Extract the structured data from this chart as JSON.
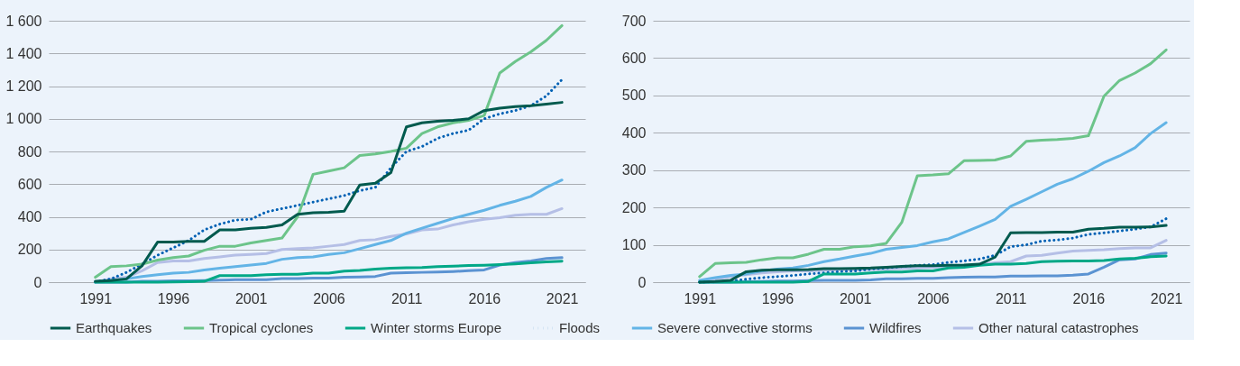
{
  "chart_data": [
    {
      "type": "line",
      "x": [
        1991,
        1992,
        1993,
        1994,
        1995,
        1996,
        1997,
        1998,
        1999,
        2000,
        2001,
        2002,
        2003,
        2004,
        2005,
        2006,
        2007,
        2008,
        2009,
        2010,
        2011,
        2012,
        2013,
        2014,
        2015,
        2016,
        2017,
        2018,
        2019,
        2020,
        2021
      ],
      "xlim": [
        1988,
        2022.5
      ],
      "xticks": [
        1991,
        1996,
        2001,
        2006,
        2011,
        2016,
        2021
      ],
      "ylim": [
        0,
        1600
      ],
      "yticks": [
        0,
        200,
        400,
        600,
        800,
        {
          "value": 1000,
          "label": "1 000"
        },
        {
          "value": 1200,
          "label": "1 200"
        },
        {
          "value": 1400,
          "label": "1 400"
        },
        {
          "value": 1600,
          "label": "1 600"
        }
      ],
      "grid": "y",
      "legend": "bottom",
      "marker": "none",
      "series": [
        {
          "name": "Earthquakes",
          "color": "#005a4e",
          "line_style": "solid",
          "values": [
            5,
            10,
            20,
            100,
            245,
            245,
            250,
            250,
            320,
            320,
            330,
            335,
            350,
            415,
            425,
            428,
            435,
            595,
            605,
            670,
            950,
            975,
            985,
            990,
            1000,
            1050,
            1065,
            1075,
            1080,
            1090,
            1100
          ]
        },
        {
          "name": "Tropical cyclones",
          "color": "#6cc48a",
          "line_style": "solid",
          "values": [
            30,
            95,
            100,
            110,
            135,
            150,
            160,
            195,
            220,
            220,
            240,
            255,
            270,
            400,
            660,
            680,
            700,
            775,
            785,
            800,
            820,
            910,
            950,
            975,
            990,
            1020,
            1280,
            1350,
            1410,
            1480,
            1570
          ]
        },
        {
          "name": "Winter storms Europe",
          "color": "#00a887",
          "line_style": "solid",
          "values": [
            0,
            0,
            0,
            0,
            0,
            2,
            3,
            5,
            40,
            40,
            40,
            45,
            48,
            48,
            55,
            55,
            68,
            72,
            80,
            85,
            88,
            90,
            95,
            98,
            102,
            104,
            107,
            112,
            118,
            124,
            128
          ]
        },
        {
          "name": "Floods",
          "color": "#0061b4",
          "line_style": "dotted",
          "values": [
            2,
            20,
            60,
            110,
            165,
            210,
            255,
            320,
            355,
            380,
            385,
            430,
            450,
            470,
            490,
            510,
            530,
            560,
            580,
            700,
            800,
            830,
            880,
            910,
            930,
            1000,
            1030,
            1050,
            1080,
            1140,
            1240
          ]
        },
        {
          "name": "Severe convective storms",
          "color": "#63b4e6",
          "line_style": "solid",
          "values": [
            2,
            10,
            20,
            35,
            45,
            55,
            60,
            75,
            85,
            95,
            105,
            115,
            140,
            150,
            155,
            170,
            180,
            205,
            230,
            255,
            300,
            330,
            360,
            390,
            415,
            440,
            470,
            495,
            525,
            580,
            625
          ]
        },
        {
          "name": "Wildfires",
          "color": "#5b93d2",
          "line_style": "solid",
          "values": [
            0,
            0,
            0,
            5,
            5,
            8,
            8,
            10,
            12,
            15,
            15,
            15,
            22,
            22,
            25,
            25,
            30,
            32,
            35,
            55,
            58,
            60,
            62,
            65,
            70,
            75,
            105,
            120,
            130,
            145,
            150
          ]
        },
        {
          "name": "Other natural catastrophes",
          "color": "#b5bfe6",
          "line_style": "solid",
          "values": [
            2,
            20,
            30,
            70,
            120,
            130,
            130,
            145,
            155,
            165,
            170,
            175,
            200,
            205,
            210,
            220,
            230,
            255,
            260,
            280,
            295,
            320,
            325,
            350,
            370,
            385,
            395,
            410,
            415,
            415,
            450
          ]
        }
      ]
    },
    {
      "type": "line",
      "x": [
        1991,
        1992,
        1993,
        1994,
        1995,
        1996,
        1997,
        1998,
        1999,
        2000,
        2001,
        2002,
        2003,
        2004,
        2005,
        2006,
        2007,
        2008,
        2009,
        2010,
        2011,
        2012,
        2013,
        2014,
        2015,
        2016,
        2017,
        2018,
        2019,
        2020,
        2021
      ],
      "xlim": [
        1988,
        2022.5
      ],
      "xticks": [
        1991,
        1996,
        2001,
        2006,
        2011,
        2016,
        2021
      ],
      "ylim": [
        0,
        700
      ],
      "yticks": [
        0,
        100,
        200,
        300,
        400,
        500,
        600,
        700
      ],
      "grid": "y",
      "legend": "bottom",
      "marker": "none",
      "series": [
        {
          "name": "Earthquakes",
          "color": "#005a4e",
          "line_style": "solid",
          "values": [
            0,
            2,
            5,
            28,
            32,
            33,
            33,
            34,
            36,
            36,
            37,
            38,
            40,
            42,
            44,
            44,
            45,
            46,
            48,
            67,
            132,
            133,
            133,
            134,
            134,
            142,
            144,
            147,
            147,
            148,
            152
          ]
        },
        {
          "name": "Tropical cyclones",
          "color": "#6cc48a",
          "line_style": "solid",
          "values": [
            15,
            50,
            52,
            53,
            60,
            65,
            65,
            75,
            88,
            88,
            95,
            97,
            104,
            160,
            285,
            287,
            290,
            325,
            326,
            327,
            338,
            377,
            380,
            382,
            385,
            392,
            498,
            540,
            560,
            585,
            622
          ]
        },
        {
          "name": "Winter storms Europe",
          "color": "#00a887",
          "line_style": "solid",
          "values": [
            0,
            0,
            0,
            0,
            0,
            0,
            0,
            2,
            22,
            22,
            22,
            25,
            27,
            27,
            30,
            30,
            38,
            40,
            45,
            48,
            48,
            50,
            55,
            56,
            57,
            57,
            58,
            62,
            64,
            68,
            70
          ]
        },
        {
          "name": "Floods",
          "color": "#0061b4",
          "line_style": "dotted",
          "values": [
            0,
            1,
            3,
            8,
            12,
            15,
            18,
            22,
            25,
            28,
            30,
            35,
            38,
            42,
            45,
            47,
            53,
            57,
            62,
            72,
            95,
            100,
            110,
            113,
            118,
            128,
            132,
            137,
            142,
            148,
            170
          ]
        },
        {
          "name": "Severe convective storms",
          "color": "#63b4e6",
          "line_style": "solid",
          "values": [
            5,
            12,
            18,
            22,
            30,
            35,
            38,
            45,
            55,
            62,
            70,
            77,
            88,
            93,
            98,
            108,
            116,
            133,
            150,
            168,
            203,
            222,
            242,
            262,
            277,
            297,
            320,
            338,
            360,
            398,
            427
          ]
        },
        {
          "name": "Wildfires",
          "color": "#5b93d2",
          "line_style": "solid",
          "values": [
            0,
            0,
            0,
            1,
            2,
            3,
            3,
            4,
            5,
            5,
            5,
            6,
            9,
            9,
            10,
            10,
            12,
            13,
            14,
            14,
            16,
            16,
            17,
            17,
            19,
            22,
            40,
            60,
            62,
            74,
            78
          ]
        },
        {
          "name": "Other natural catastrophes",
          "color": "#b5bfe6",
          "line_style": "solid",
          "values": [
            2,
            8,
            15,
            20,
            25,
            28,
            30,
            30,
            32,
            33,
            33,
            34,
            35,
            36,
            38,
            40,
            42,
            44,
            47,
            52,
            55,
            70,
            72,
            78,
            83,
            85,
            87,
            90,
            92,
            92,
            112
          ]
        }
      ]
    }
  ]
}
